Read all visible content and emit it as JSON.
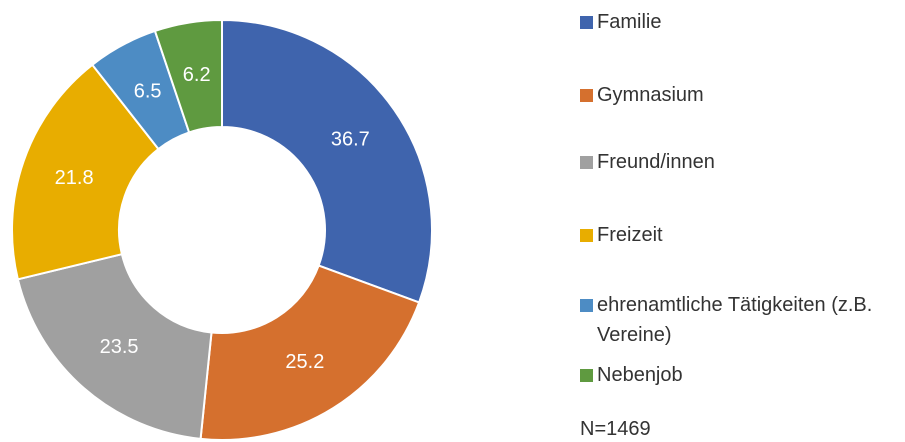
{
  "chart_data": {
    "type": "donut",
    "categories": [
      "Familie",
      "Gymnasium",
      "Freund/innen",
      "Freizeit",
      "ehrenamtliche Tätigkeiten (z.B. Vereine)",
      "Nebenjob"
    ],
    "values": [
      36.7,
      25.2,
      23.5,
      21.8,
      6.5,
      6.2
    ],
    "colors": [
      "#3f64ad",
      "#d5702e",
      "#a0a0a0",
      "#e8ad00",
      "#4d8cc4",
      "#5f9a40"
    ],
    "annotation": "N=1469"
  }
}
